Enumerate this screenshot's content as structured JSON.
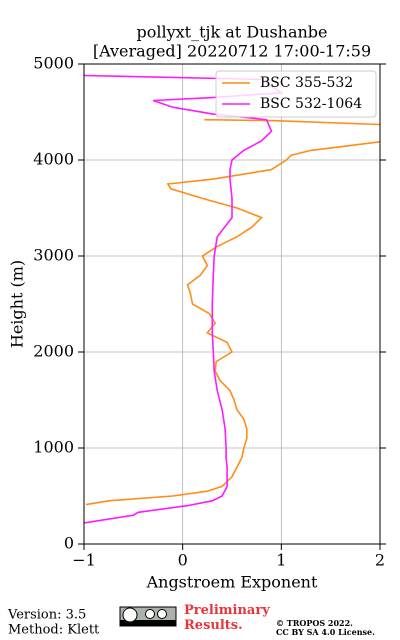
{
  "chart_data": {
    "type": "line",
    "title": "pollyxt_tjk at Dushanbe",
    "subtitle": "[Averaged] 20220712 17:00-17:59",
    "x_label": "Angstroem Exponent",
    "y_label": "Height (m)",
    "xlim": [
      -1,
      2
    ],
    "xticks": [
      {
        "value": -1,
        "label": "−1"
      },
      0,
      1,
      2
    ],
    "ylim": [
      0,
      5000
    ],
    "yticks": [
      0,
      1000,
      2000,
      3000,
      4000,
      5000
    ],
    "grid": true,
    "legend": "upper right",
    "series": [
      {
        "name": "BSC 355-532",
        "color": "#ff8c1a",
        "y": [
          410,
          450,
          500,
          550,
          600,
          700,
          800,
          900,
          1000,
          1100,
          1200,
          1300,
          1400,
          1500,
          1600,
          1700,
          1800,
          1900,
          2000,
          2100,
          2200,
          2300,
          2400,
          2500,
          2600,
          2700,
          2800,
          2900,
          3000,
          3100,
          3200,
          3300,
          3400,
          3500,
          3600,
          3700,
          3750,
          3800,
          3850,
          3900,
          4000,
          4050,
          4100,
          4190,
          null,
          4370,
          4410,
          4420
        ],
        "values": [
          -0.98,
          -0.75,
          -0.1,
          0.25,
          0.4,
          0.5,
          0.55,
          0.6,
          0.62,
          0.65,
          0.65,
          0.62,
          0.55,
          0.52,
          0.48,
          0.38,
          0.33,
          0.34,
          0.5,
          0.45,
          0.25,
          0.33,
          0.27,
          0.1,
          0.08,
          0.05,
          0.18,
          0.25,
          0.2,
          0.35,
          0.55,
          0.7,
          0.8,
          0.55,
          0.2,
          -0.12,
          -0.15,
          0.3,
          0.6,
          0.9,
          1.05,
          1.1,
          1.3,
          2.0,
          null,
          2.0,
          0.9,
          0.22
        ]
      },
      {
        "name": "BSC 532-1064",
        "color": "#ff1aff",
        "y": [
          220,
          300,
          330,
          400,
          450,
          500,
          600,
          700,
          800,
          900,
          1000,
          1200,
          1400,
          1600,
          1800,
          2000,
          2200,
          2500,
          2800,
          3000,
          3200,
          3400,
          3600,
          3800,
          3900,
          4000,
          4100,
          4200,
          4300,
          4420,
          4480,
          4550,
          4620,
          4650,
          4700,
          4840,
          4880
        ],
        "values": [
          -1.0,
          -0.5,
          -0.45,
          0.05,
          0.3,
          0.4,
          0.45,
          0.45,
          0.45,
          0.44,
          0.44,
          0.43,
          0.4,
          0.35,
          0.32,
          0.31,
          0.3,
          0.3,
          0.31,
          0.32,
          0.35,
          0.5,
          0.5,
          0.48,
          0.48,
          0.5,
          0.62,
          0.8,
          0.9,
          0.85,
          0.3,
          -0.1,
          -0.3,
          0.3,
          1.0,
          0.8,
          -1.0
        ]
      }
    ]
  },
  "footer": {
    "version": "Version: 3.5",
    "method": "Method: Klett",
    "preliminary": "Preliminary Results.",
    "copyright": "© TROPOS 2022.",
    "license": "CC BY SA 4.0 License."
  }
}
